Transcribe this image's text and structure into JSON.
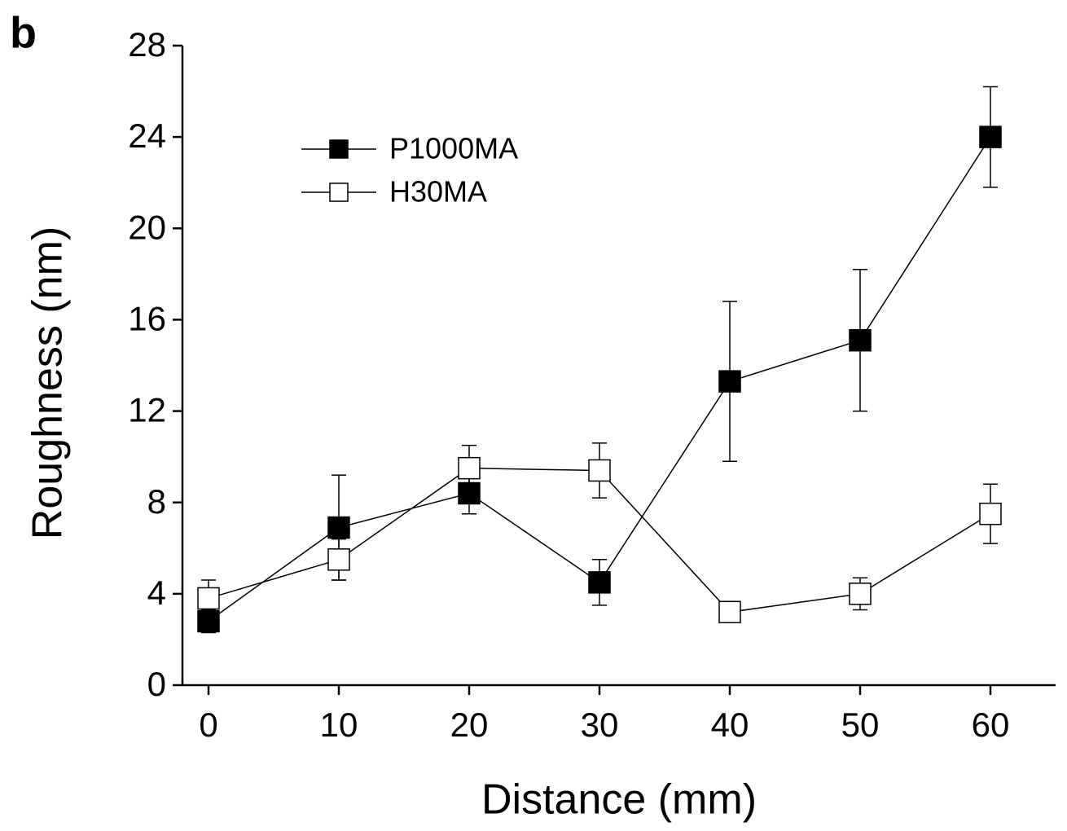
{
  "chart_data": {
    "type": "line",
    "panel_label": "b",
    "xlabel": "Distance (mm)",
    "ylabel": "Roughness (nm)",
    "x": [
      0,
      10,
      20,
      30,
      40,
      50,
      60
    ],
    "series": [
      {
        "name": "P1000MA",
        "color": "#000000",
        "fill": "#000000",
        "values": [
          2.8,
          6.9,
          8.4,
          4.5,
          13.3,
          15.1,
          24.0
        ],
        "errors": [
          0.5,
          2.3,
          0.9,
          1.0,
          3.5,
          3.1,
          2.2
        ]
      },
      {
        "name": "H30MA",
        "color": "#000000",
        "fill": "#ffffff",
        "values": [
          3.8,
          5.5,
          9.5,
          9.4,
          3.2,
          4.0,
          7.5
        ],
        "errors": [
          0.8,
          0.9,
          1.0,
          1.2,
          0.3,
          0.7,
          1.3
        ]
      }
    ],
    "xlim": [
      -2,
      65
    ],
    "xticks": [
      0,
      10,
      20,
      30,
      40,
      50,
      60
    ],
    "ylim": [
      0,
      28
    ],
    "yticks": [
      0,
      4,
      8,
      12,
      16,
      20,
      24,
      28
    ],
    "legend": "upper left"
  }
}
